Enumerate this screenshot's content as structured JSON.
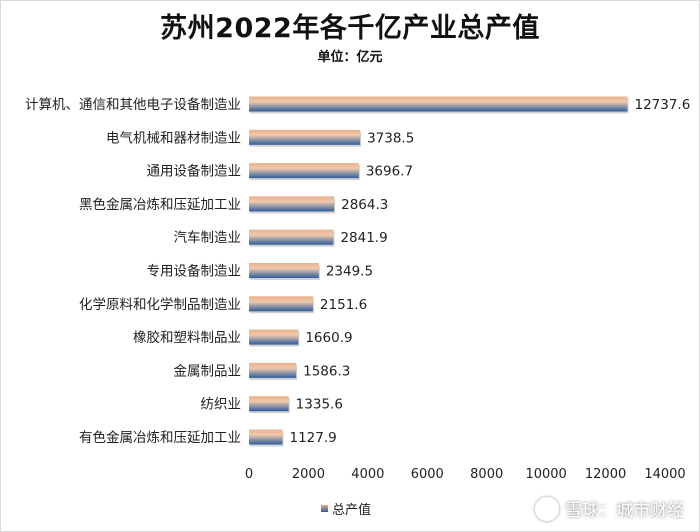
{
  "chart_data": {
    "type": "bar",
    "orientation": "horizontal",
    "title": "苏州2022年各千亿产业总产值",
    "subtitle": "单位：亿元",
    "categories": [
      "计算机、通信和其他电子设备制造业",
      "电气机械和器材制造业",
      "通用设备制造业",
      "黑色金属冶炼和压延加工业",
      "汽车制造业",
      "专用设备制造业",
      "化学原料和化学制品制造业",
      "橡胶和塑料制品业",
      "金属制品业",
      "纺织业",
      "有色金属冶炼和压延加工业"
    ],
    "series": [
      {
        "name": "总产值",
        "values": [
          12737.6,
          3738.5,
          3696.7,
          2864.3,
          2841.9,
          2349.5,
          2151.6,
          1660.9,
          1586.3,
          1335.6,
          1127.9
        ],
        "value_labels": [
          "12737.6",
          "3738.5",
          "3696.7",
          "2864.3",
          "2841.9",
          "2349.5",
          "2151.6",
          "1660.9",
          "1586.3",
          "1335.6",
          "1127.9"
        ]
      }
    ],
    "xlim": [
      0,
      14000
    ],
    "x_ticks": [
      "0",
      "2000",
      "4000",
      "6000",
      "8000",
      "10000",
      "12000",
      "14000"
    ],
    "grid": false,
    "legend": "bottom",
    "colors": {
      "bar_top": "#e8b08b",
      "bar_bottom": "#2b5d9e"
    }
  },
  "watermark": {
    "icon": "snowball-icon",
    "text": "雪球：城市财经"
  }
}
